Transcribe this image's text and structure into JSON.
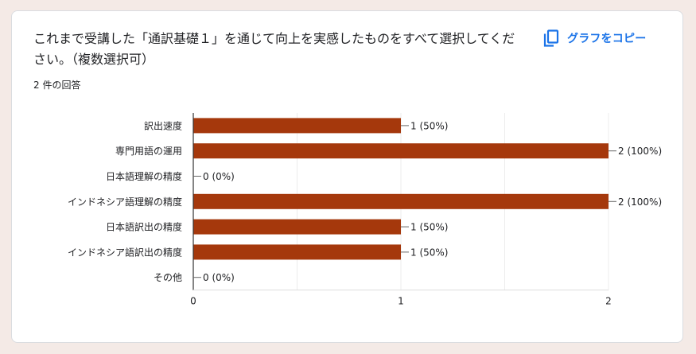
{
  "question": {
    "title": "これまで受講した「通訳基礎１」を通じて向上を実感したものをすべて選択してください。（複数選択可）",
    "response_count": "2 件の回答"
  },
  "toolbar": {
    "copy_label": "グラフをコピー",
    "copy_icon": "copy-icon"
  },
  "colors": {
    "bar": "#a5380c",
    "grid": "#ececec",
    "axis": "#333333",
    "accent": "#1a73e8"
  },
  "chart_data": {
    "type": "bar",
    "orientation": "horizontal",
    "categories": [
      "訳出速度",
      "専門用語の運用",
      "日本語理解の精度",
      "インドネシア語理解の精度",
      "日本語訳出の精度",
      "インドネシア語訳出の精度",
      "その他"
    ],
    "values": [
      1,
      2,
      0,
      2,
      1,
      1,
      0
    ],
    "data_labels": [
      "1 (50%)",
      "2 (100%)",
      "0 (0%)",
      "2 (100%)",
      "1 (50%)",
      "1 (50%)",
      "0 (0%)"
    ],
    "xticks": [
      "0",
      "1",
      "2"
    ],
    "xlim": [
      0,
      2
    ],
    "grid": true
  }
}
